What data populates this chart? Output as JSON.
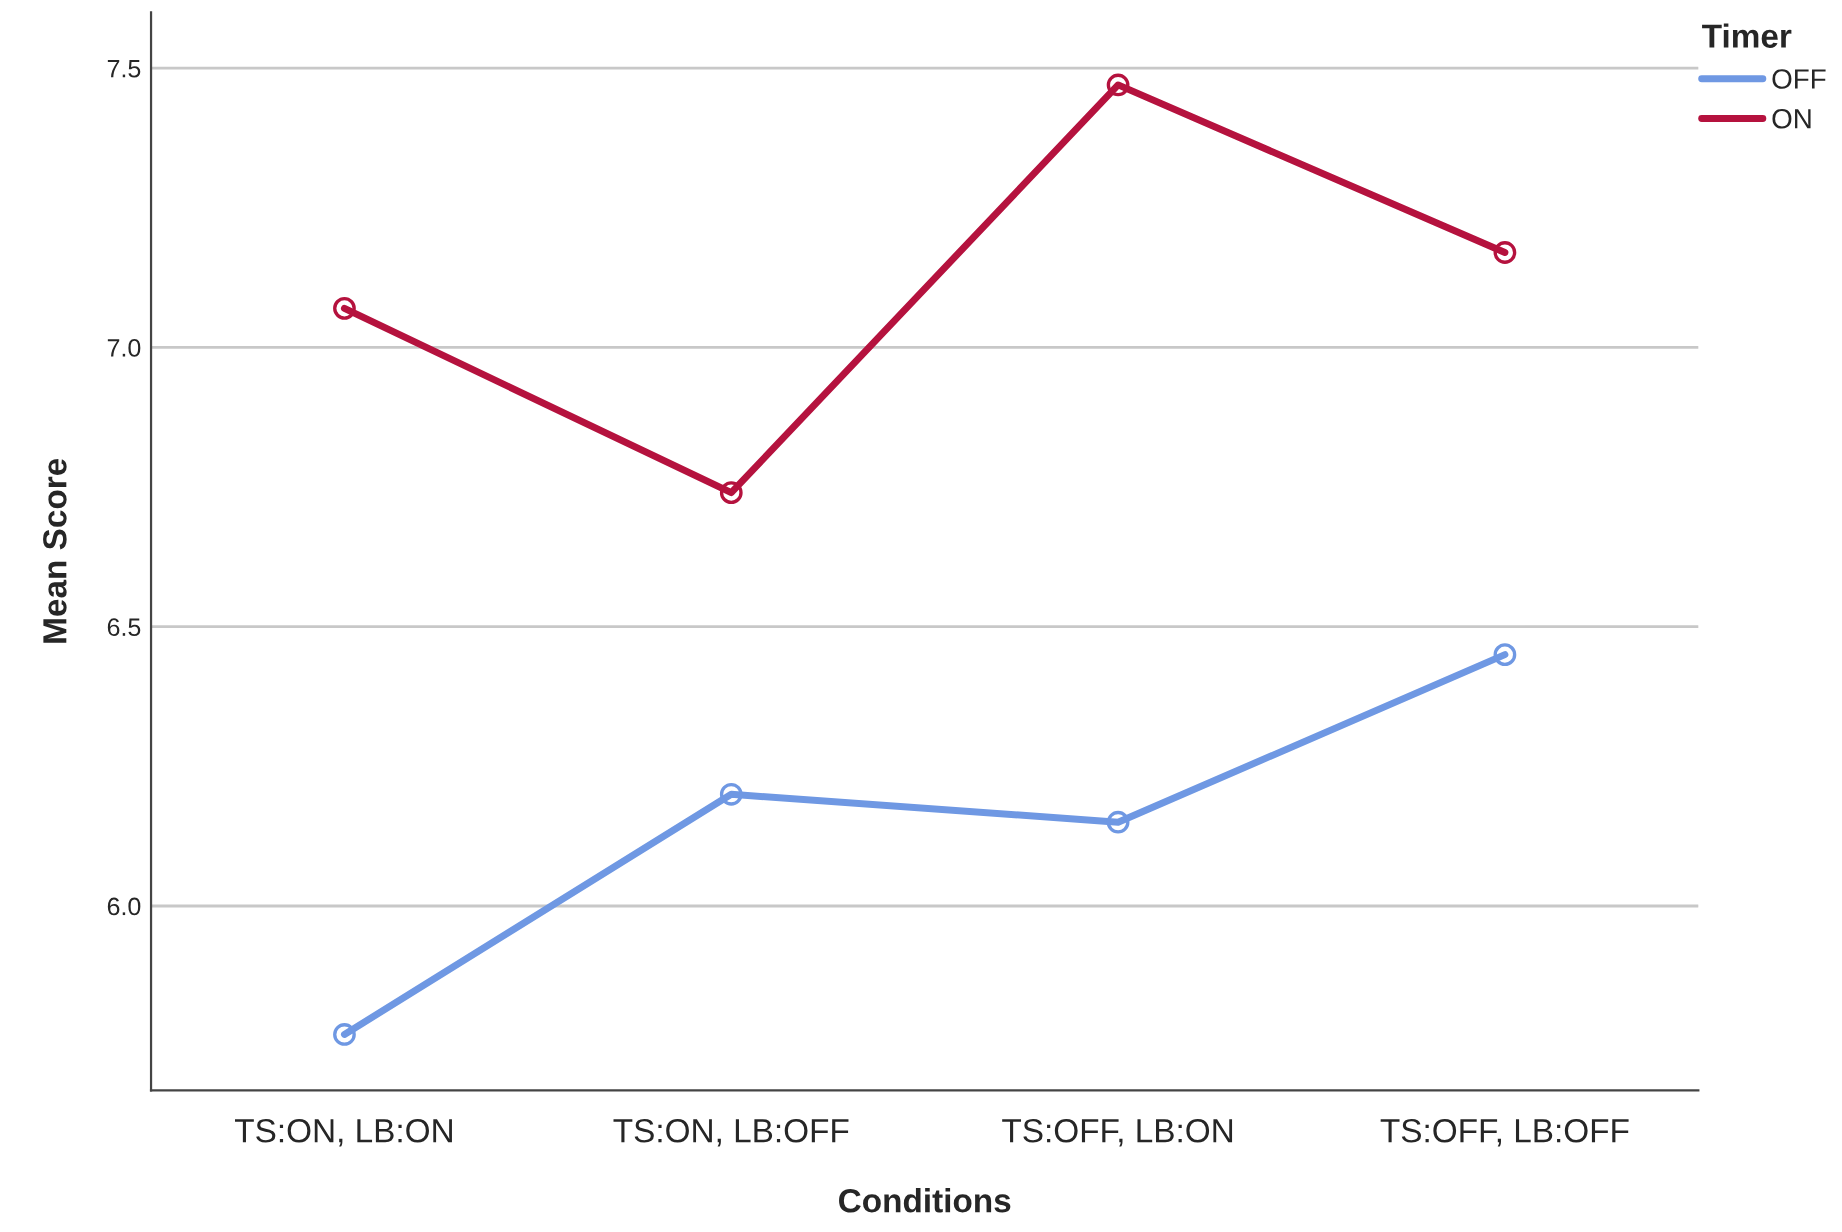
{
  "chart_data": {
    "type": "line",
    "xlabel": "Conditions",
    "ylabel": "Mean Score",
    "legend_title": "Timer",
    "categories": [
      "TS:ON, LB:ON",
      "TS:ON, LB:OFF",
      "TS:OFF, LB:ON",
      "TS:OFF, LB:OFF"
    ],
    "series": [
      {
        "name": "OFF",
        "color": "#6f98e3",
        "values": [
          5.77,
          6.2,
          6.15,
          6.45
        ]
      },
      {
        "name": "ON",
        "color": "#b5123e",
        "values": [
          7.07,
          6.74,
          7.47,
          7.17
        ]
      }
    ],
    "ylim": [
      5.67,
      7.6
    ],
    "yticks": [
      {
        "value": 6.0,
        "label": "6.0"
      },
      {
        "value": 6.5,
        "label": "6.5"
      },
      {
        "value": 7.0,
        "label": "7.0"
      },
      {
        "value": 7.5,
        "label": "7.5"
      }
    ],
    "grid": "y",
    "legend": "top right",
    "marker": "circle",
    "line_style": "solid"
  }
}
